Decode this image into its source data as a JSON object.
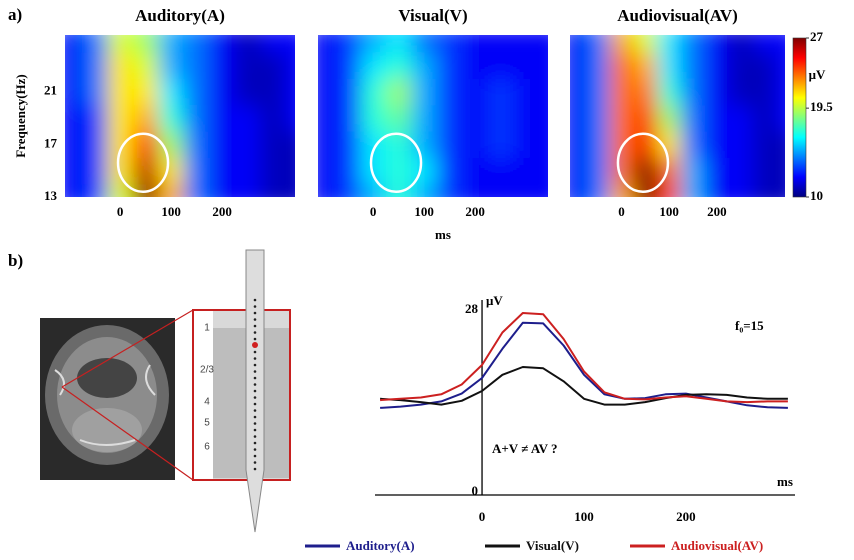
{
  "panel_labels": [
    "a)",
    "b)"
  ],
  "electrode_layers": [
    "1",
    "2/3",
    "4",
    "5",
    "6"
  ],
  "chart_data": [
    {
      "type": "heatmap",
      "title": "Auditory(A)",
      "ylabel": "Frequency(Hz)",
      "x": [
        -100,
        -50,
        0,
        50,
        100,
        150,
        200,
        250,
        300,
        350
      ],
      "y": [
        13,
        15,
        17,
        19,
        21,
        23,
        25
      ],
      "z": [
        [
          12,
          13,
          20,
          27,
          22,
          14,
          12,
          12,
          11,
          11
        ],
        [
          12,
          13,
          21,
          26,
          21,
          14,
          12,
          12,
          11,
          11
        ],
        [
          12,
          13,
          21,
          24,
          19,
          14,
          12,
          12,
          11,
          11
        ],
        [
          12,
          13,
          21,
          22,
          17,
          14,
          12,
          12,
          11,
          12
        ],
        [
          12,
          14,
          21,
          21,
          16,
          14,
          12,
          11,
          11,
          12
        ],
        [
          12,
          14,
          21,
          20,
          15,
          14,
          12,
          11,
          11,
          12
        ],
        [
          12,
          14,
          20,
          19,
          15,
          14,
          12,
          11,
          12,
          12
        ]
      ],
      "xlim": [
        -108,
        343
      ],
      "ylim": [
        13,
        25.3
      ],
      "xticks": [
        0,
        100,
        200
      ],
      "yticks": [
        13,
        17,
        21
      ],
      "zlim": [
        10,
        27
      ]
    },
    {
      "type": "heatmap",
      "title": "Visual(V)",
      "xlabel": "ms",
      "x": [
        -100,
        -50,
        0,
        50,
        100,
        150,
        200,
        250,
        300,
        350
      ],
      "y": [
        13,
        15,
        17,
        19,
        21,
        23,
        25
      ],
      "z": [
        [
          12,
          13,
          15,
          17,
          15,
          13,
          12,
          12,
          12,
          12
        ],
        [
          12,
          13,
          16,
          17,
          16,
          13,
          12,
          12,
          12,
          12
        ],
        [
          12,
          13,
          16,
          17,
          15,
          13,
          12,
          13,
          12,
          12
        ],
        [
          12,
          13,
          17,
          18,
          15,
          13,
          12,
          13,
          12,
          12
        ],
        [
          12,
          13,
          17,
          19,
          15,
          13,
          12,
          13,
          12,
          12
        ],
        [
          12,
          13,
          16,
          17,
          15,
          13,
          12,
          12,
          12,
          12
        ],
        [
          12,
          13,
          15,
          16,
          14,
          13,
          12,
          12,
          12,
          12
        ]
      ],
      "xlim": [
        -108,
        343
      ],
      "ylim": [
        13,
        25.3
      ],
      "xticks": [
        0,
        100,
        200
      ],
      "zlim": [
        10,
        27
      ]
    },
    {
      "type": "heatmap",
      "title": "Audiovisual(AV)",
      "x": [
        -100,
        -50,
        0,
        50,
        100,
        150,
        200,
        250,
        300,
        350
      ],
      "y": [
        13,
        15,
        17,
        19,
        21,
        23,
        25
      ],
      "z": [
        [
          12,
          14,
          22,
          27,
          24,
          15,
          12,
          12,
          11,
          11
        ],
        [
          12,
          14,
          23,
          27,
          23,
          15,
          12,
          12,
          11,
          11
        ],
        [
          12,
          14,
          23,
          25,
          21,
          14,
          12,
          12,
          11,
          11
        ],
        [
          12,
          14,
          23,
          24,
          19,
          14,
          12,
          12,
          11,
          12
        ],
        [
          12,
          14,
          23,
          23,
          17,
          14,
          12,
          11,
          11,
          12
        ],
        [
          12,
          14,
          23,
          22,
          16,
          14,
          12,
          11,
          11,
          12
        ],
        [
          12,
          14,
          22,
          20,
          16,
          14,
          12,
          11,
          12,
          12
        ]
      ],
      "xlim": [
        -108,
        343
      ],
      "ylim": [
        13,
        25.3
      ],
      "xticks": [
        0,
        100,
        200
      ],
      "zlim": [
        10,
        27
      ],
      "zticks": [
        10,
        19.5,
        27
      ],
      "zlabel": "μV"
    },
    {
      "type": "line",
      "ylabel": "μV",
      "xlabel": "ms",
      "annotations": [
        "f₀=15",
        "A+V ≠ AV ?"
      ],
      "x": [
        -100,
        -80,
        -60,
        -40,
        -20,
        0,
        20,
        40,
        60,
        80,
        100,
        120,
        140,
        160,
        180,
        200,
        220,
        240,
        260,
        280,
        300
      ],
      "series": [
        {
          "name": "Auditory(A)",
          "color": "#1e1e8c",
          "values": [
            13.4,
            13.6,
            13.9,
            14.4,
            15.6,
            18,
            22.5,
            26.5,
            26.4,
            23,
            18.5,
            15.5,
            14.8,
            14.9,
            15.5,
            15.6,
            15,
            14.4,
            13.8,
            13.5,
            13.4
          ]
        },
        {
          "name": "Visual(V)",
          "color": "#111111",
          "values": [
            14.8,
            14.6,
            14.3,
            13.9,
            14.5,
            16,
            18.5,
            19.7,
            19.5,
            17.5,
            14.8,
            13.9,
            13.9,
            14.3,
            14.9,
            15.4,
            15.5,
            15.4,
            15,
            14.8,
            14.8
          ]
        },
        {
          "name": "Audiovisual(AV)",
          "color": "#cc2020",
          "values": [
            14.6,
            14.8,
            15,
            15.5,
            17,
            20,
            25,
            28,
            27.8,
            24,
            19,
            15.8,
            14.8,
            14.7,
            15,
            15.2,
            14.8,
            14.4,
            14.3,
            14.4,
            14.4
          ]
        }
      ],
      "xlim": [
        -105,
        307
      ],
      "ylim": [
        0,
        30
      ],
      "xticks": [
        0,
        100,
        200
      ],
      "yticks": [
        0,
        28
      ]
    }
  ]
}
